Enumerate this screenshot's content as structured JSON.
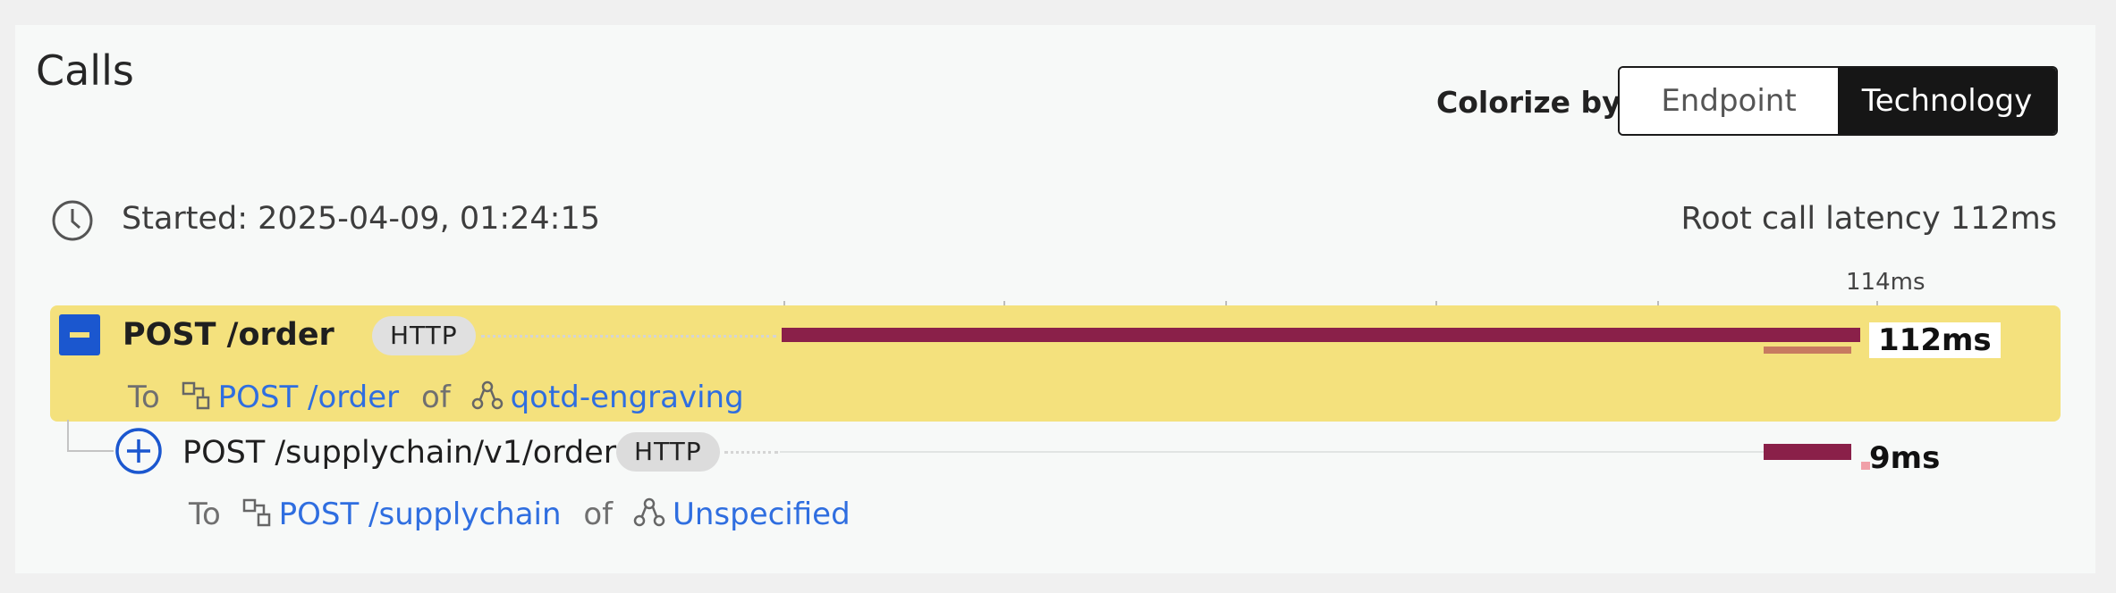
{
  "panel": {
    "title": "Calls",
    "colorize": {
      "label": "Colorize by",
      "options": [
        "Endpoint",
        "Technology"
      ],
      "selected": "Technology"
    },
    "started": "Started: 2025-04-09, 01:24:15",
    "root_latency": "Root call latency 112ms"
  },
  "timeline": {
    "axis_label": "114ms"
  },
  "calls": [
    {
      "name": "POST /order",
      "tech": "HTTP",
      "latency": "112ms",
      "to_word": "To",
      "endpoint": "POST /order",
      "of_word": "of",
      "service": "qotd-engraving",
      "expanded": true
    },
    {
      "name": "POST /supplychain/v1/order",
      "tech": "HTTP",
      "latency": "9ms",
      "to_word": "To",
      "endpoint": "POST /supplychain",
      "of_word": "of",
      "service": "Unspecified",
      "expanded": false
    }
  ],
  "colors": {
    "selected_row": "#f4e17d",
    "bar": "#8a2049",
    "bar_secondary": "#c77a60",
    "link": "#2f6ee0",
    "button_blue": "#1b57cf"
  },
  "icons": {
    "clock": "clock-icon",
    "collapse": "minus-square-icon",
    "expand": "plus-circle-icon",
    "endpoint": "endpoint-icon",
    "service": "service-icon"
  }
}
